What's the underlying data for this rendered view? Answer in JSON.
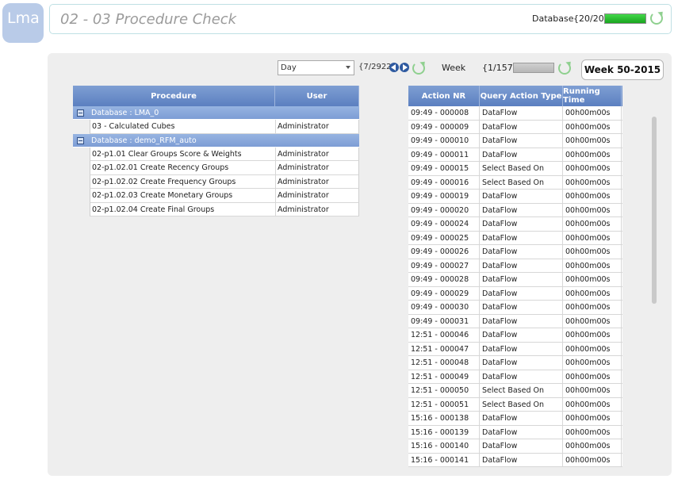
{
  "logo": {
    "text": "Lma"
  },
  "header": {
    "title": "02 - 03 Procedure Check",
    "db_label": "Database",
    "db_count": "{20/20}",
    "db_progress": 1.0
  },
  "toolbar": {
    "period_select": "Day",
    "day_count": "{7/2922}",
    "week_label": "Week",
    "week_count": "{1/157}",
    "week_button": "Week 50-2015"
  },
  "procedures": {
    "columns": [
      "Procedure",
      "User"
    ],
    "groups": [
      {
        "label": "Database : LMA_0",
        "rows": [
          {
            "procedure": "03 - Calculated Cubes",
            "user": "Administrator"
          }
        ]
      },
      {
        "label": "Database : demo_RFM_auto",
        "rows": [
          {
            "procedure": "02-p1.01 Clear Groups Score & Weights",
            "user": "Administrator"
          },
          {
            "procedure": "02-p1.02.01 Create Recency Groups",
            "user": "Administrator"
          },
          {
            "procedure": "02-p1.02.02 Create Frequency Groups",
            "user": "Administrator"
          },
          {
            "procedure": "02-p1.02.03 Create Monetary Groups",
            "user": "Administrator"
          },
          {
            "procedure": "02-p1.02.04 Create Final Groups",
            "user": "Administrator"
          }
        ]
      }
    ]
  },
  "actions": {
    "columns": [
      "Action NR",
      "Query Action Type",
      "Running Time"
    ],
    "rows": [
      [
        "09:49 - 000008",
        "DataFlow",
        "00h00m00s"
      ],
      [
        "09:49 - 000009",
        "DataFlow",
        "00h00m00s"
      ],
      [
        "09:49 - 000010",
        "DataFlow",
        "00h00m00s"
      ],
      [
        "09:49 - 000011",
        "DataFlow",
        "00h00m00s"
      ],
      [
        "09:49 - 000015",
        "Select Based On",
        "00h00m00s"
      ],
      [
        "09:49 - 000016",
        "Select Based On",
        "00h00m00s"
      ],
      [
        "09:49 - 000019",
        "DataFlow",
        "00h00m00s"
      ],
      [
        "09:49 - 000020",
        "DataFlow",
        "00h00m00s"
      ],
      [
        "09:49 - 000024",
        "DataFlow",
        "00h00m00s"
      ],
      [
        "09:49 - 000025",
        "DataFlow",
        "00h00m00s"
      ],
      [
        "09:49 - 000026",
        "DataFlow",
        "00h00m00s"
      ],
      [
        "09:49 - 000027",
        "DataFlow",
        "00h00m00s"
      ],
      [
        "09:49 - 000028",
        "DataFlow",
        "00h00m00s"
      ],
      [
        "09:49 - 000029",
        "DataFlow",
        "00h00m00s"
      ],
      [
        "09:49 - 000030",
        "DataFlow",
        "00h00m00s"
      ],
      [
        "09:49 - 000031",
        "DataFlow",
        "00h00m00s"
      ],
      [
        "12:51 - 000046",
        "DataFlow",
        "00h00m00s"
      ],
      [
        "12:51 - 000047",
        "DataFlow",
        "00h00m00s"
      ],
      [
        "12:51 - 000048",
        "DataFlow",
        "00h00m00s"
      ],
      [
        "12:51 - 000049",
        "DataFlow",
        "00h00m00s"
      ],
      [
        "12:51 - 000050",
        "Select Based On",
        "00h00m00s"
      ],
      [
        "12:51 - 000051",
        "Select Based On",
        "00h00m00s"
      ],
      [
        "15:16 - 000138",
        "DataFlow",
        "00h00m00s"
      ],
      [
        "15:16 - 000139",
        "DataFlow",
        "00h00m00s"
      ],
      [
        "15:16 - 000140",
        "DataFlow",
        "00h00m00s"
      ],
      [
        "15:16 - 000141",
        "DataFlow",
        "00h00m00s"
      ]
    ]
  }
}
